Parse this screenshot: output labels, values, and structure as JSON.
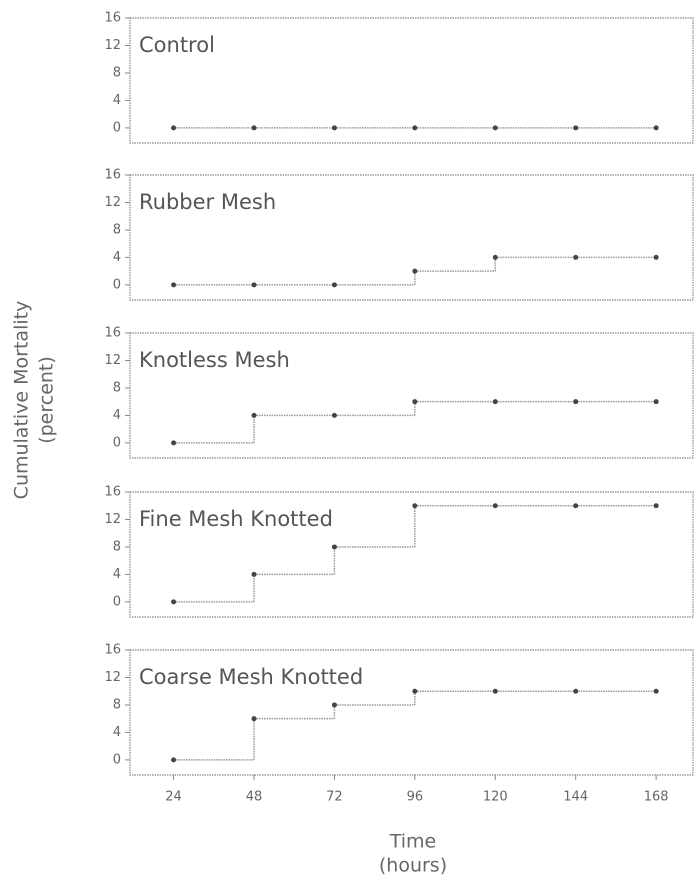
{
  "y_label": "Cumulative Mortality",
  "y_label_units": "(percent)",
  "x_label": "Time",
  "x_label_units": "(hours)",
  "chart_data": [
    {
      "type": "step",
      "title": "Control",
      "x": [
        24,
        48,
        72,
        96,
        120,
        144,
        168
      ],
      "values": [
        0,
        0,
        0,
        0,
        0,
        0,
        0
      ],
      "xlim": [
        11,
        179
      ],
      "ylim": [
        -2.2,
        16
      ],
      "yticks": [
        0,
        4,
        8,
        12,
        16
      ],
      "color": "#999999",
      "marker_color": "#444444"
    },
    {
      "type": "step",
      "title": "Rubber Mesh",
      "x": [
        24,
        48,
        72,
        96,
        120,
        144,
        168
      ],
      "values": [
        0,
        0,
        0,
        2,
        4,
        4,
        4
      ],
      "xlim": [
        11,
        179
      ],
      "ylim": [
        -2.2,
        16
      ],
      "yticks": [
        0,
        4,
        8,
        12,
        16
      ],
      "color": "#999999",
      "marker_color": "#444444"
    },
    {
      "type": "step",
      "title": "Knotless Mesh",
      "x": [
        24,
        48,
        72,
        96,
        120,
        144,
        168
      ],
      "values": [
        0,
        4,
        4,
        6,
        6,
        6,
        6
      ],
      "xlim": [
        11,
        179
      ],
      "ylim": [
        -2.2,
        16
      ],
      "yticks": [
        0,
        4,
        8,
        12,
        16
      ],
      "color": "#999999",
      "marker_color": "#444444"
    },
    {
      "type": "step",
      "title": "Fine Mesh Knotted",
      "x": [
        24,
        48,
        72,
        96,
        120,
        144,
        168
      ],
      "values": [
        0,
        4,
        8,
        14,
        14,
        14,
        14
      ],
      "xlim": [
        11,
        179
      ],
      "ylim": [
        -2.2,
        16
      ],
      "yticks": [
        0,
        4,
        8,
        12,
        16
      ],
      "color": "#999999",
      "marker_color": "#444444"
    },
    {
      "type": "step",
      "title": "Coarse Mesh Knotted",
      "x": [
        24,
        48,
        72,
        96,
        120,
        144,
        168
      ],
      "values": [
        0,
        6,
        8,
        10,
        10,
        10,
        10
      ],
      "xlim": [
        11,
        179
      ],
      "ylim": [
        -2.2,
        16
      ],
      "yticks": [
        0,
        4,
        8,
        12,
        16
      ],
      "xticks": [
        24,
        48,
        72,
        96,
        120,
        144,
        168
      ],
      "color": "#999999",
      "marker_color": "#444444"
    }
  ]
}
